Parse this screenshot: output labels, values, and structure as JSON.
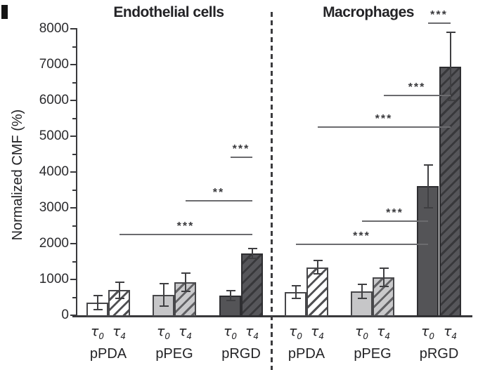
{
  "figure": {
    "y_axis": {
      "label": "Normalized CMF (%)",
      "tick_labels": [
        "0",
        "1000",
        "2000",
        "3000",
        "4000",
        "5000",
        "6000",
        "7000",
        "8000"
      ]
    },
    "x_axis": {
      "series_labels": [
        "τ0",
        "τ4"
      ],
      "group_labels": [
        "pPDA",
        "pPEG",
        "pRGD"
      ]
    }
  },
  "chart_data": {
    "type": "bar",
    "ylabel": "Normalized CMF (%)",
    "ylim": [
      0,
      8000
    ],
    "y_major_tick": 1000,
    "y_minor_tick": 500,
    "grid": false,
    "panels": [
      {
        "title": "Endothelial cells",
        "categories": [
          "pPDA",
          "pPEG",
          "pRGD"
        ],
        "series": [
          {
            "name": "τ0",
            "style": "solid",
            "values": [
              350,
              570,
              550
            ],
            "errors": [
              200,
              310,
              130
            ]
          },
          {
            "name": "τ4",
            "style": "hatched",
            "values": [
              700,
              920,
              1730
            ],
            "errors": [
              230,
              250,
              140
            ]
          }
        ],
        "significance": [
          {
            "from": "pPDA τ4",
            "to": "pRGD τ4",
            "label": "***",
            "y": 2270
          },
          {
            "from": "pPEG τ4",
            "to": "pRGD τ4",
            "label": "**",
            "y": 3220
          },
          {
            "from": "pRGD τ0",
            "to": "pRGD τ4",
            "label": "***",
            "y": 4430
          }
        ]
      },
      {
        "title": "Macrophages",
        "categories": [
          "pPDA",
          "pPEG",
          "pRGD"
        ],
        "series": [
          {
            "name": "τ0",
            "style": "solid",
            "values": [
              650,
              670,
              3600
            ],
            "errors": [
              180,
              190,
              600
            ]
          },
          {
            "name": "τ4",
            "style": "hatched",
            "values": [
              1340,
              1060,
              6950
            ],
            "errors": [
              190,
              260,
              950
            ]
          }
        ],
        "significance": [
          {
            "from": "pPDA τ0",
            "to": "pRGD τ0",
            "label": "***",
            "y": 2000
          },
          {
            "from": "pPEG τ0",
            "to": "pRGD τ0",
            "label": "***",
            "y": 2650
          },
          {
            "from": "pPDA τ4",
            "to": "pRGD τ4",
            "label": "***",
            "y": 5270
          },
          {
            "from": "pPEG τ4",
            "to": "pRGD τ4",
            "label": "***",
            "y": 6160
          },
          {
            "from": "pRGD τ0",
            "to": "pRGD τ4",
            "label": "***",
            "y": 8180
          }
        ]
      }
    ]
  },
  "colors": {
    "bar_white": "#ffffff",
    "bar_light_gray": "#c6c6c8",
    "bar_dark_gray": "#545457",
    "bar_border": "#47474a",
    "hatch_stripe_dark": "#38383b",
    "axis": "#39393c",
    "significance_line": "#6b6b6e",
    "text": "#232326"
  }
}
